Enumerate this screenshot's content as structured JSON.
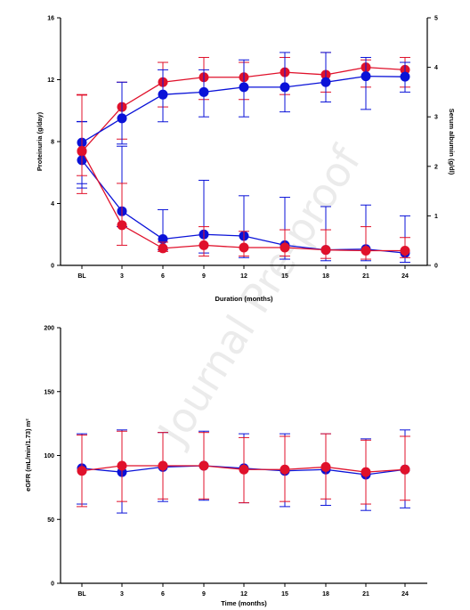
{
  "watermark": "Journal Pre-proof",
  "colors": {
    "red": "#e0112b",
    "blue": "#0a12d8"
  },
  "chart_data": [
    {
      "type": "line",
      "categories": [
        "BL",
        "3",
        "6",
        "9",
        "12",
        "15",
        "18",
        "21",
        "24"
      ],
      "xlabel": "Duration (months)",
      "ylabel": "Proteinuria (g/day)",
      "y2label": "Serum albumin (g/dl)",
      "ylim": [
        0,
        16
      ],
      "yticks": [
        "0",
        "4",
        "8",
        "12",
        "16"
      ],
      "y2lim": [
        0,
        5
      ],
      "y2ticks": [
        "0",
        "1",
        "2",
        "3",
        "4",
        "5"
      ],
      "series": [
        {
          "color": "red",
          "axis": "y",
          "values": [
            7.4,
            2.6,
            1.1,
            1.3,
            1.15,
            1.15,
            1.0,
            0.95,
            0.95
          ],
          "err_low": [
            5.8,
            1.3,
            0.9,
            0.6,
            0.6,
            0.6,
            0.45,
            0.4,
            0.5
          ],
          "err_high": [
            11.0,
            5.3,
            1.5,
            2.5,
            2.2,
            2.3,
            2.3,
            2.5,
            1.8
          ]
        },
        {
          "color": "blue",
          "axis": "y",
          "values": [
            6.8,
            3.5,
            1.7,
            2.0,
            1.9,
            1.3,
            1.0,
            1.05,
            0.8
          ],
          "err_low": [
            5.0,
            2.5,
            1.0,
            0.8,
            0.5,
            0.4,
            0.3,
            0.3,
            0.2
          ],
          "err_high": [
            9.3,
            7.7,
            3.6,
            5.5,
            4.5,
            4.4,
            3.8,
            3.9,
            3.2
          ]
        },
        {
          "color": "red",
          "axis": "y2",
          "values": [
            2.3,
            3.2,
            3.7,
            3.8,
            3.8,
            3.9,
            3.85,
            4.0,
            3.95
          ],
          "err_low": [
            1.45,
            2.55,
            3.2,
            3.35,
            3.35,
            3.45,
            3.5,
            3.6,
            3.6
          ],
          "err_high": [
            3.45,
            3.7,
            4.1,
            4.2,
            4.1,
            4.2,
            4.3,
            4.15,
            4.2
          ]
        },
        {
          "color": "blue",
          "axis": "y2",
          "values": [
            2.48,
            2.97,
            3.45,
            3.5,
            3.6,
            3.6,
            3.7,
            3.82,
            3.81
          ],
          "err_low": [
            1.65,
            2.45,
            2.9,
            3.0,
            3.0,
            3.1,
            3.3,
            3.15,
            3.5
          ],
          "err_high": [
            2.9,
            3.7,
            3.95,
            3.95,
            4.15,
            4.3,
            4.3,
            4.2,
            4.1
          ]
        }
      ]
    },
    {
      "type": "line",
      "categories": [
        "BL",
        "3",
        "6",
        "9",
        "12",
        "15",
        "18",
        "21",
        "24"
      ],
      "xlabel": "Time (months)",
      "ylabel": "eGFR (mL/min/1.73) m²",
      "ylim": [
        0,
        200
      ],
      "yticks": [
        "0",
        "50",
        "100",
        "150",
        "200"
      ],
      "series": [
        {
          "color": "red",
          "values": [
            88,
            92,
            92,
            92,
            89,
            89,
            91,
            87,
            89
          ],
          "err_low": [
            60,
            64,
            66,
            66,
            63,
            64,
            66,
            62,
            65
          ],
          "err_high": [
            116,
            119,
            118,
            118,
            114,
            115,
            117,
            112,
            115
          ]
        },
        {
          "color": "blue",
          "values": [
            90,
            87,
            91,
            92,
            90,
            88,
            89,
            85,
            89
          ],
          "err_low": [
            62,
            55,
            64,
            65,
            63,
            60,
            61,
            57,
            59
          ],
          "err_high": [
            117,
            120,
            118,
            119,
            117,
            117,
            117,
            113,
            120
          ]
        }
      ]
    }
  ]
}
